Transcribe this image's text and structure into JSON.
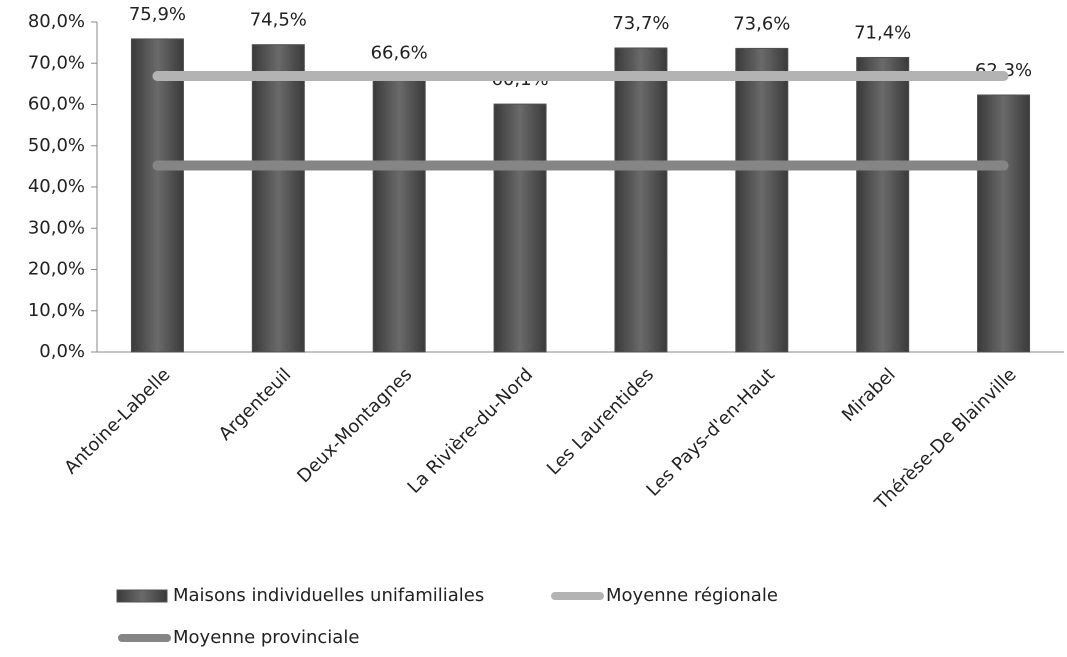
{
  "chart_data": {
    "type": "bar",
    "categories": [
      "Antoine-Labelle",
      "Argenteuil",
      "Deux-Montagnes",
      "La Rivière-du-Nord",
      "Les Laurentides",
      "Les Pays-d'en-Haut",
      "Mirabel",
      "Thérèse-De Blainville"
    ],
    "series": [
      {
        "name": "Maisons individuelles unifamiliales",
        "type": "bar",
        "color": "#505050",
        "values": [
          75.9,
          74.5,
          66.6,
          60.1,
          73.7,
          73.6,
          71.4,
          62.3
        ],
        "value_labels": [
          "75,9%",
          "74,5%",
          "66,6%",
          "60,1%",
          "73,7%",
          "73,6%",
          "71,4%",
          "62,3%"
        ]
      },
      {
        "name": "Moyenne régionale",
        "type": "line",
        "color": "#b3b3b3",
        "values": [
          66.9,
          66.9,
          66.9,
          66.9,
          66.9,
          66.9,
          66.9,
          66.9
        ]
      },
      {
        "name": "Moyenne provinciale",
        "type": "line",
        "color": "#858585",
        "values": [
          45.2,
          45.2,
          45.2,
          45.2,
          45.2,
          45.2,
          45.2,
          45.2
        ]
      }
    ],
    "ylim": [
      0,
      80
    ],
    "yticks": [
      {
        "value": 0,
        "label": "0,0%"
      },
      {
        "value": 10,
        "label": "10,0%"
      },
      {
        "value": 20,
        "label": "20,0%"
      },
      {
        "value": 30,
        "label": "30,0%"
      },
      {
        "value": 40,
        "label": "40,0%"
      },
      {
        "value": 50,
        "label": "50,0%"
      },
      {
        "value": 60,
        "label": "60,0%"
      },
      {
        "value": 70,
        "label": "70,0%"
      },
      {
        "value": 80,
        "label": "80,0%"
      }
    ],
    "grid": false
  }
}
